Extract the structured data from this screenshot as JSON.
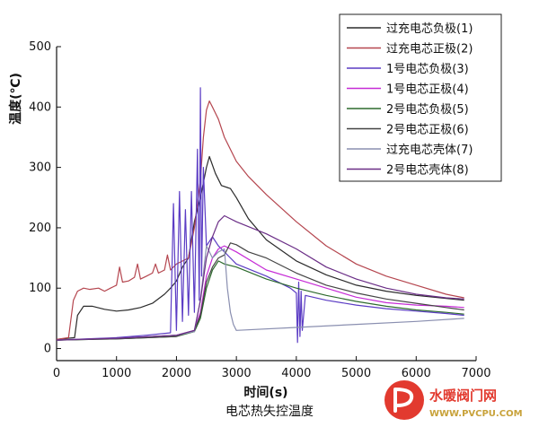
{
  "chart_data": {
    "type": "line",
    "xlabel": "时间(s)",
    "ylabel": "温度(℃)",
    "caption": "电芯热失控温度",
    "xlim": [
      0,
      7000
    ],
    "ylim": [
      -20,
      500
    ],
    "x_ticks": [
      0,
      1000,
      2000,
      3000,
      4000,
      5000,
      6000,
      7000
    ],
    "y_ticks": [
      0,
      100,
      200,
      300,
      400,
      500
    ],
    "legend_position": "top-right",
    "grid": false,
    "series": [
      {
        "name": "过充电芯负极(1)",
        "color": "#2b2b2b",
        "points": [
          [
            0,
            15
          ],
          [
            300,
            18
          ],
          [
            350,
            55
          ],
          [
            450,
            70
          ],
          [
            600,
            70
          ],
          [
            800,
            65
          ],
          [
            1000,
            62
          ],
          [
            1200,
            64
          ],
          [
            1400,
            68
          ],
          [
            1600,
            75
          ],
          [
            1800,
            90
          ],
          [
            1900,
            100
          ],
          [
            2000,
            112
          ],
          [
            2100,
            135
          ],
          [
            2200,
            150
          ],
          [
            2300,
            210
          ],
          [
            2400,
            250
          ],
          [
            2500,
            300
          ],
          [
            2550,
            318
          ],
          [
            2650,
            290
          ],
          [
            2750,
            270
          ],
          [
            2900,
            265
          ],
          [
            3000,
            250
          ],
          [
            3200,
            215
          ],
          [
            3500,
            180
          ],
          [
            4000,
            145
          ],
          [
            4500,
            122
          ],
          [
            5000,
            105
          ],
          [
            5500,
            95
          ],
          [
            6000,
            88
          ],
          [
            6500,
            83
          ],
          [
            6800,
            80
          ]
        ]
      },
      {
        "name": "过充电芯正极(2)",
        "color": "#b5464f",
        "points": [
          [
            0,
            15
          ],
          [
            200,
            18
          ],
          [
            280,
            80
          ],
          [
            350,
            95
          ],
          [
            450,
            100
          ],
          [
            550,
            98
          ],
          [
            700,
            100
          ],
          [
            800,
            95
          ],
          [
            900,
            100
          ],
          [
            1000,
            105
          ],
          [
            1050,
            135
          ],
          [
            1100,
            110
          ],
          [
            1200,
            112
          ],
          [
            1300,
            118
          ],
          [
            1350,
            140
          ],
          [
            1400,
            115
          ],
          [
            1500,
            120
          ],
          [
            1600,
            125
          ],
          [
            1650,
            140
          ],
          [
            1700,
            125
          ],
          [
            1800,
            130
          ],
          [
            1850,
            155
          ],
          [
            1900,
            130
          ],
          [
            2000,
            140
          ],
          [
            2200,
            150
          ],
          [
            2300,
            200
          ],
          [
            2400,
            280
          ],
          [
            2450,
            350
          ],
          [
            2500,
            395
          ],
          [
            2550,
            410
          ],
          [
            2600,
            400
          ],
          [
            2700,
            380
          ],
          [
            2800,
            350
          ],
          [
            3000,
            310
          ],
          [
            3200,
            285
          ],
          [
            3500,
            255
          ],
          [
            4000,
            210
          ],
          [
            4500,
            170
          ],
          [
            5000,
            140
          ],
          [
            5500,
            120
          ],
          [
            6000,
            105
          ],
          [
            6500,
            90
          ],
          [
            6800,
            84
          ]
        ]
      },
      {
        "name": "1号电芯负极(3)",
        "color": "#5b3cc4",
        "points": [
          [
            0,
            14
          ],
          [
            1000,
            18
          ],
          [
            1500,
            22
          ],
          [
            1900,
            26
          ],
          [
            1950,
            240
          ],
          [
            2000,
            30
          ],
          [
            2050,
            260
          ],
          [
            2100,
            45
          ],
          [
            2150,
            230
          ],
          [
            2200,
            55
          ],
          [
            2250,
            260
          ],
          [
            2300,
            60
          ],
          [
            2350,
            330
          ],
          [
            2380,
            80
          ],
          [
            2400,
            432
          ],
          [
            2420,
            120
          ],
          [
            2450,
            300
          ],
          [
            2500,
            170
          ],
          [
            2600,
            185
          ],
          [
            2700,
            170
          ],
          [
            2800,
            160
          ],
          [
            3000,
            140
          ],
          [
            3500,
            120
          ],
          [
            3900,
            100
          ],
          [
            4000,
            92
          ],
          [
            4020,
            10
          ],
          [
            4040,
            110
          ],
          [
            4060,
            20
          ],
          [
            4080,
            95
          ],
          [
            4100,
            30
          ],
          [
            4150,
            88
          ],
          [
            4500,
            80
          ],
          [
            5000,
            72
          ],
          [
            5500,
            66
          ],
          [
            6000,
            62
          ],
          [
            6500,
            58
          ],
          [
            6800,
            55
          ]
        ]
      },
      {
        "name": "1号电芯正极(4)",
        "color": "#c62bd6",
        "points": [
          [
            0,
            14
          ],
          [
            1000,
            17
          ],
          [
            2000,
            22
          ],
          [
            2300,
            30
          ],
          [
            2400,
            60
          ],
          [
            2500,
            120
          ],
          [
            2600,
            150
          ],
          [
            2700,
            165
          ],
          [
            2800,
            170
          ],
          [
            3000,
            160
          ],
          [
            3500,
            130
          ],
          [
            4000,
            115
          ],
          [
            4500,
            100
          ],
          [
            5000,
            85
          ],
          [
            5500,
            76
          ],
          [
            6000,
            72
          ],
          [
            6500,
            70
          ],
          [
            6800,
            68
          ]
        ]
      },
      {
        "name": "2号电芯负极(5)",
        "color": "#2e6b2e",
        "points": [
          [
            0,
            14
          ],
          [
            1000,
            16
          ],
          [
            2000,
            20
          ],
          [
            2300,
            28
          ],
          [
            2400,
            50
          ],
          [
            2500,
            100
          ],
          [
            2600,
            130
          ],
          [
            2700,
            145
          ],
          [
            2800,
            140
          ],
          [
            3000,
            135
          ],
          [
            3500,
            115
          ],
          [
            4000,
            100
          ],
          [
            4500,
            88
          ],
          [
            5000,
            78
          ],
          [
            5500,
            70
          ],
          [
            6000,
            64
          ],
          [
            6500,
            60
          ],
          [
            6800,
            57
          ]
        ]
      },
      {
        "name": "2号电芯正极(6)",
        "color": "#444444",
        "points": [
          [
            0,
            14
          ],
          [
            1000,
            16
          ],
          [
            2000,
            20
          ],
          [
            2300,
            30
          ],
          [
            2400,
            55
          ],
          [
            2500,
            110
          ],
          [
            2600,
            135
          ],
          [
            2700,
            150
          ],
          [
            2800,
            155
          ],
          [
            2900,
            175
          ],
          [
            3000,
            172
          ],
          [
            3200,
            160
          ],
          [
            3500,
            150
          ],
          [
            4000,
            125
          ],
          [
            4500,
            105
          ],
          [
            5000,
            92
          ],
          [
            5500,
            82
          ],
          [
            6000,
            75
          ],
          [
            6500,
            68
          ],
          [
            6800,
            64
          ]
        ]
      },
      {
        "name": "过充电芯壳体(7)",
        "color": "#8a8fb0",
        "points": [
          [
            0,
            14
          ],
          [
            1000,
            17
          ],
          [
            2000,
            22
          ],
          [
            2300,
            28
          ],
          [
            2400,
            80
          ],
          [
            2500,
            170
          ],
          [
            2600,
            150
          ],
          [
            2700,
            160
          ],
          [
            2800,
            165
          ],
          [
            2850,
            100
          ],
          [
            2900,
            60
          ],
          [
            2950,
            40
          ],
          [
            3000,
            30
          ],
          [
            4000,
            35
          ],
          [
            5000,
            40
          ],
          [
            6000,
            45
          ],
          [
            6800,
            50
          ]
        ]
      },
      {
        "name": "2号电芯壳体(8)",
        "color": "#6a2d86",
        "points": [
          [
            0,
            14
          ],
          [
            1000,
            17
          ],
          [
            2000,
            22
          ],
          [
            2300,
            30
          ],
          [
            2400,
            80
          ],
          [
            2500,
            150
          ],
          [
            2600,
            185
          ],
          [
            2700,
            210
          ],
          [
            2800,
            220
          ],
          [
            3000,
            210
          ],
          [
            3500,
            190
          ],
          [
            4000,
            165
          ],
          [
            4500,
            135
          ],
          [
            5000,
            115
          ],
          [
            5500,
            100
          ],
          [
            6000,
            90
          ],
          [
            6500,
            84
          ],
          [
            6800,
            82
          ]
        ]
      }
    ]
  },
  "watermark": {
    "name": "水暖阀门网",
    "url": "WWW.PVCPU.COM"
  }
}
